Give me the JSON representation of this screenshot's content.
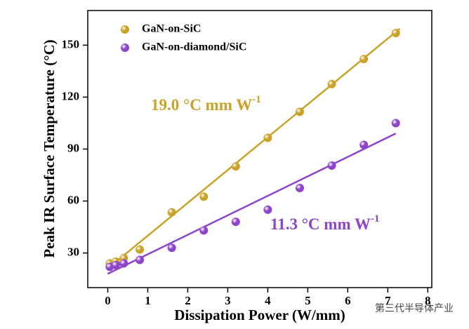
{
  "chart_data": {
    "type": "scatter",
    "x_label": "Dissipation Power (W/mm)",
    "y_label": "Peak IR Surface Temperature (°C)",
    "x": [
      0.05,
      0.2,
      0.4,
      0.8,
      1.6,
      2.4,
      3.2,
      4.0,
      4.8,
      5.6,
      6.4,
      7.2
    ],
    "series": [
      {
        "name": "GaN-on-SiC",
        "color": "#c9a227",
        "values": [
          24,
          25,
          27,
          32,
          53.5,
          62.5,
          80,
          96.5,
          111.5,
          127.5,
          142,
          157
        ],
        "fit": {
          "x": [
            0,
            7.3
          ],
          "y": [
            21,
            159.5
          ]
        }
      },
      {
        "name": "GaN-on-diamond/SiC",
        "color": "#8e44c8",
        "values": [
          22,
          23,
          24,
          26,
          33,
          43,
          48,
          55,
          67.5,
          80.5,
          92.5,
          105
        ],
        "fit": {
          "x": [
            0,
            7.2
          ],
          "y": [
            18,
            99
          ]
        }
      }
    ],
    "annotations": [
      {
        "text": "19.0 °C mm W",
        "superscript": "-1",
        "color": "#c9a227"
      },
      {
        "text": "11.3 °C mm W",
        "superscript": "-1",
        "color": "#8e44c8"
      }
    ],
    "xlim": [
      -0.5,
      8.1
    ],
    "xticks": [
      0,
      1,
      2,
      3,
      4,
      5,
      6,
      7,
      8
    ],
    "ylim": [
      10,
      170
    ],
    "yticks": [
      30,
      60,
      90,
      120,
      150
    ],
    "legend": "upper left",
    "watermark": "第三代半导体产业"
  }
}
